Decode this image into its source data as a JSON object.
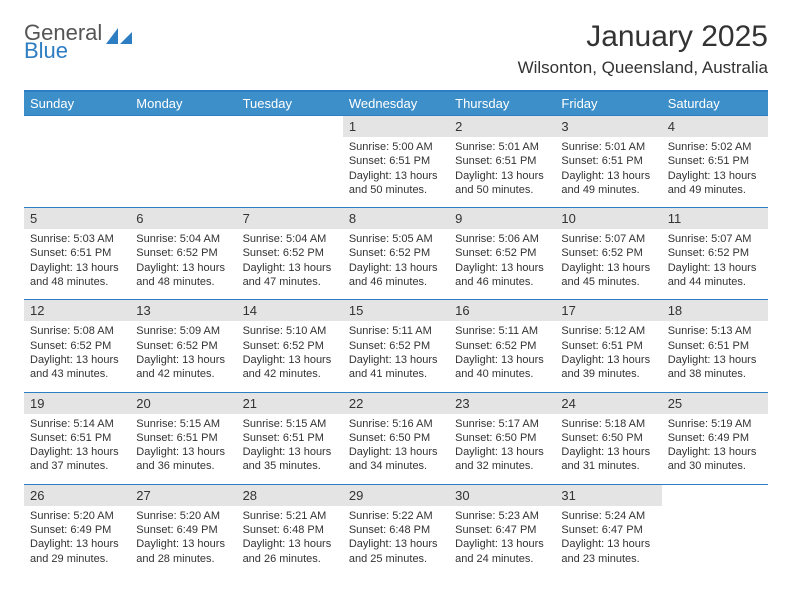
{
  "logo": {
    "text1": "General",
    "text2": "Blue"
  },
  "title": "January 2025",
  "subtitle": "Wilsonton, Queensland, Australia",
  "colors": {
    "header_bg": "#3d8fc9",
    "header_text": "#ffffff",
    "border": "#2d7dc2",
    "daynum_bg": "#e4e4e4",
    "text": "#333333",
    "page_bg": "#ffffff"
  },
  "dayNames": [
    "Sunday",
    "Monday",
    "Tuesday",
    "Wednesday",
    "Thursday",
    "Friday",
    "Saturday"
  ],
  "labels": {
    "sunrise": "Sunrise:",
    "sunset": "Sunset:",
    "daylight": "Daylight:"
  },
  "weeks": [
    [
      {
        "empty": true
      },
      {
        "empty": true
      },
      {
        "empty": true
      },
      {
        "day": "1",
        "sunrise": "5:00 AM",
        "sunset": "6:51 PM",
        "daylight": "13 hours and 50 minutes."
      },
      {
        "day": "2",
        "sunrise": "5:01 AM",
        "sunset": "6:51 PM",
        "daylight": "13 hours and 50 minutes."
      },
      {
        "day": "3",
        "sunrise": "5:01 AM",
        "sunset": "6:51 PM",
        "daylight": "13 hours and 49 minutes."
      },
      {
        "day": "4",
        "sunrise": "5:02 AM",
        "sunset": "6:51 PM",
        "daylight": "13 hours and 49 minutes."
      }
    ],
    [
      {
        "day": "5",
        "sunrise": "5:03 AM",
        "sunset": "6:51 PM",
        "daylight": "13 hours and 48 minutes."
      },
      {
        "day": "6",
        "sunrise": "5:04 AM",
        "sunset": "6:52 PM",
        "daylight": "13 hours and 48 minutes."
      },
      {
        "day": "7",
        "sunrise": "5:04 AM",
        "sunset": "6:52 PM",
        "daylight": "13 hours and 47 minutes."
      },
      {
        "day": "8",
        "sunrise": "5:05 AM",
        "sunset": "6:52 PM",
        "daylight": "13 hours and 46 minutes."
      },
      {
        "day": "9",
        "sunrise": "5:06 AM",
        "sunset": "6:52 PM",
        "daylight": "13 hours and 46 minutes."
      },
      {
        "day": "10",
        "sunrise": "5:07 AM",
        "sunset": "6:52 PM",
        "daylight": "13 hours and 45 minutes."
      },
      {
        "day": "11",
        "sunrise": "5:07 AM",
        "sunset": "6:52 PM",
        "daylight": "13 hours and 44 minutes."
      }
    ],
    [
      {
        "day": "12",
        "sunrise": "5:08 AM",
        "sunset": "6:52 PM",
        "daylight": "13 hours and 43 minutes."
      },
      {
        "day": "13",
        "sunrise": "5:09 AM",
        "sunset": "6:52 PM",
        "daylight": "13 hours and 42 minutes."
      },
      {
        "day": "14",
        "sunrise": "5:10 AM",
        "sunset": "6:52 PM",
        "daylight": "13 hours and 42 minutes."
      },
      {
        "day": "15",
        "sunrise": "5:11 AM",
        "sunset": "6:52 PM",
        "daylight": "13 hours and 41 minutes."
      },
      {
        "day": "16",
        "sunrise": "5:11 AM",
        "sunset": "6:52 PM",
        "daylight": "13 hours and 40 minutes."
      },
      {
        "day": "17",
        "sunrise": "5:12 AM",
        "sunset": "6:51 PM",
        "daylight": "13 hours and 39 minutes."
      },
      {
        "day": "18",
        "sunrise": "5:13 AM",
        "sunset": "6:51 PM",
        "daylight": "13 hours and 38 minutes."
      }
    ],
    [
      {
        "day": "19",
        "sunrise": "5:14 AM",
        "sunset": "6:51 PM",
        "daylight": "13 hours and 37 minutes."
      },
      {
        "day": "20",
        "sunrise": "5:15 AM",
        "sunset": "6:51 PM",
        "daylight": "13 hours and 36 minutes."
      },
      {
        "day": "21",
        "sunrise": "5:15 AM",
        "sunset": "6:51 PM",
        "daylight": "13 hours and 35 minutes."
      },
      {
        "day": "22",
        "sunrise": "5:16 AM",
        "sunset": "6:50 PM",
        "daylight": "13 hours and 34 minutes."
      },
      {
        "day": "23",
        "sunrise": "5:17 AM",
        "sunset": "6:50 PM",
        "daylight": "13 hours and 32 minutes."
      },
      {
        "day": "24",
        "sunrise": "5:18 AM",
        "sunset": "6:50 PM",
        "daylight": "13 hours and 31 minutes."
      },
      {
        "day": "25",
        "sunrise": "5:19 AM",
        "sunset": "6:49 PM",
        "daylight": "13 hours and 30 minutes."
      }
    ],
    [
      {
        "day": "26",
        "sunrise": "5:20 AM",
        "sunset": "6:49 PM",
        "daylight": "13 hours and 29 minutes."
      },
      {
        "day": "27",
        "sunrise": "5:20 AM",
        "sunset": "6:49 PM",
        "daylight": "13 hours and 28 minutes."
      },
      {
        "day": "28",
        "sunrise": "5:21 AM",
        "sunset": "6:48 PM",
        "daylight": "13 hours and 26 minutes."
      },
      {
        "day": "29",
        "sunrise": "5:22 AM",
        "sunset": "6:48 PM",
        "daylight": "13 hours and 25 minutes."
      },
      {
        "day": "30",
        "sunrise": "5:23 AM",
        "sunset": "6:47 PM",
        "daylight": "13 hours and 24 minutes."
      },
      {
        "day": "31",
        "sunrise": "5:24 AM",
        "sunset": "6:47 PM",
        "daylight": "13 hours and 23 minutes."
      },
      {
        "empty": true
      }
    ]
  ]
}
